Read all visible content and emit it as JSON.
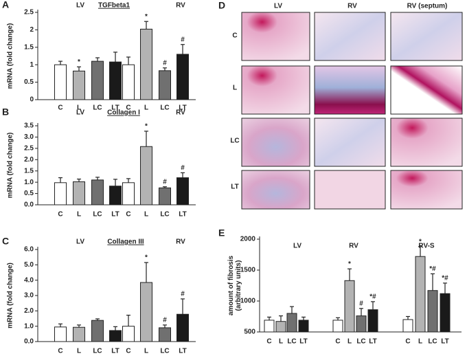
{
  "chart_data": [
    {
      "type": "bar",
      "panel": "A",
      "title": "TGFbeta1",
      "ylabel": [
        "mRNA (fold change)"
      ],
      "groups": [
        "LV",
        "RV"
      ],
      "categories": [
        "C",
        "L",
        "LC",
        "LT",
        "C",
        "L",
        "LC",
        "LT"
      ],
      "values": [
        1.0,
        0.82,
        1.1,
        1.08,
        1.0,
        2.02,
        0.83,
        1.3
      ],
      "errors": [
        0.1,
        0.12,
        0.1,
        0.28,
        0.22,
        0.22,
        0.08,
        0.28
      ],
      "markers": [
        null,
        "*",
        null,
        null,
        null,
        "*",
        "#",
        "#"
      ],
      "colors": [
        "#ffffff",
        "#b3b3b3",
        "#707070",
        "#1a1a1a",
        "#ffffff",
        "#b3b3b3",
        "#707070",
        "#1a1a1a"
      ],
      "ylim": [
        0,
        2.5
      ],
      "yticks": [
        0,
        0.5,
        1,
        1.5,
        2,
        2.5
      ]
    },
    {
      "type": "bar",
      "panel": "B",
      "title": "Collagen I",
      "ylabel": [
        "mRNA (fold change)"
      ],
      "groups": [
        "LV",
        "RV"
      ],
      "categories": [
        "C",
        "L",
        "LC",
        "LT",
        "C",
        "L",
        "LC",
        "LT"
      ],
      "values": [
        0.98,
        1.02,
        1.1,
        0.83,
        0.98,
        2.58,
        0.75,
        1.2
      ],
      "errors": [
        0.22,
        0.12,
        0.12,
        0.3,
        0.18,
        0.68,
        0.05,
        0.22
      ],
      "markers": [
        null,
        null,
        null,
        null,
        null,
        "*",
        "#",
        "#"
      ],
      "colors": [
        "#ffffff",
        "#b3b3b3",
        "#707070",
        "#1a1a1a",
        "#ffffff",
        "#b3b3b3",
        "#707070",
        "#1a1a1a"
      ],
      "ylim": [
        0,
        3.5
      ],
      "yticks": [
        {
          "value": 0,
          "label": "0.0"
        },
        0.5,
        {
          "value": 1,
          "label": "1.0"
        },
        1.5,
        {
          "value": 2,
          "label": "2.0"
        },
        2.5,
        {
          "value": 3,
          "label": "3.0"
        },
        3.5
      ]
    },
    {
      "type": "bar",
      "panel": "C",
      "title": "Collagen III",
      "ylabel": [
        "mRNA (fold change)"
      ],
      "groups": [
        "LV",
        "RV"
      ],
      "categories": [
        "C",
        "L",
        "LC",
        "LT",
        "C",
        "L",
        "LC",
        "LT"
      ],
      "values": [
        0.95,
        0.93,
        1.38,
        0.72,
        1.0,
        3.85,
        0.9,
        1.78
      ],
      "errors": [
        0.2,
        0.15,
        0.1,
        0.25,
        0.72,
        1.3,
        0.18,
        1.0
      ],
      "markers": [
        null,
        null,
        null,
        null,
        null,
        "*",
        "#",
        "#"
      ],
      "colors": [
        "#ffffff",
        "#b3b3b3",
        "#707070",
        "#1a1a1a",
        "#ffffff",
        "#b3b3b3",
        "#707070",
        "#1a1a1a"
      ],
      "ylim": [
        0,
        6
      ],
      "yticks": [
        {
          "value": 0,
          "label": "0.0"
        },
        {
          "value": 1,
          "label": "1.0"
        },
        {
          "value": 2,
          "label": "2.0"
        },
        {
          "value": 3,
          "label": "3.0"
        },
        {
          "value": 4,
          "label": "4.0"
        },
        {
          "value": 5,
          "label": "5.0"
        },
        {
          "value": 6,
          "label": "6.0"
        }
      ]
    },
    {
      "type": "bar",
      "panel": "E",
      "ylabel": [
        "amount of fibrosis",
        "(arbitrary units)"
      ],
      "groups": [
        "LV",
        "RV",
        "RV-S"
      ],
      "categories": [
        "C",
        "L",
        "LC",
        "LT",
        "C",
        "L",
        "LC",
        "LT",
        "C",
        "L",
        "LC",
        "LT"
      ],
      "values": [
        690,
        670,
        800,
        690,
        690,
        1330,
        760,
        860,
        700,
        1720,
        1170,
        1120
      ],
      "errors": [
        50,
        90,
        110,
        50,
        40,
        190,
        120,
        130,
        50,
        160,
        270,
        170
      ],
      "markers": [
        null,
        null,
        null,
        null,
        null,
        "*",
        "#",
        "*#",
        null,
        "*",
        "*#",
        "*#"
      ],
      "colors": [
        "#ffffff",
        "#b3b3b3",
        "#707070",
        "#1a1a1a",
        "#ffffff",
        "#b3b3b3",
        "#707070",
        "#1a1a1a",
        "#ffffff",
        "#b3b3b3",
        "#707070",
        "#1a1a1a"
      ],
      "ylim": [
        500,
        2000
      ],
      "yticks": [
        500,
        1000,
        1500,
        2000
      ]
    }
  ],
  "panel_d": {
    "label": "D",
    "columns": [
      "LV",
      "RV",
      "RV (septum)"
    ],
    "rows": [
      "C",
      "L",
      "LC",
      "LT"
    ]
  }
}
